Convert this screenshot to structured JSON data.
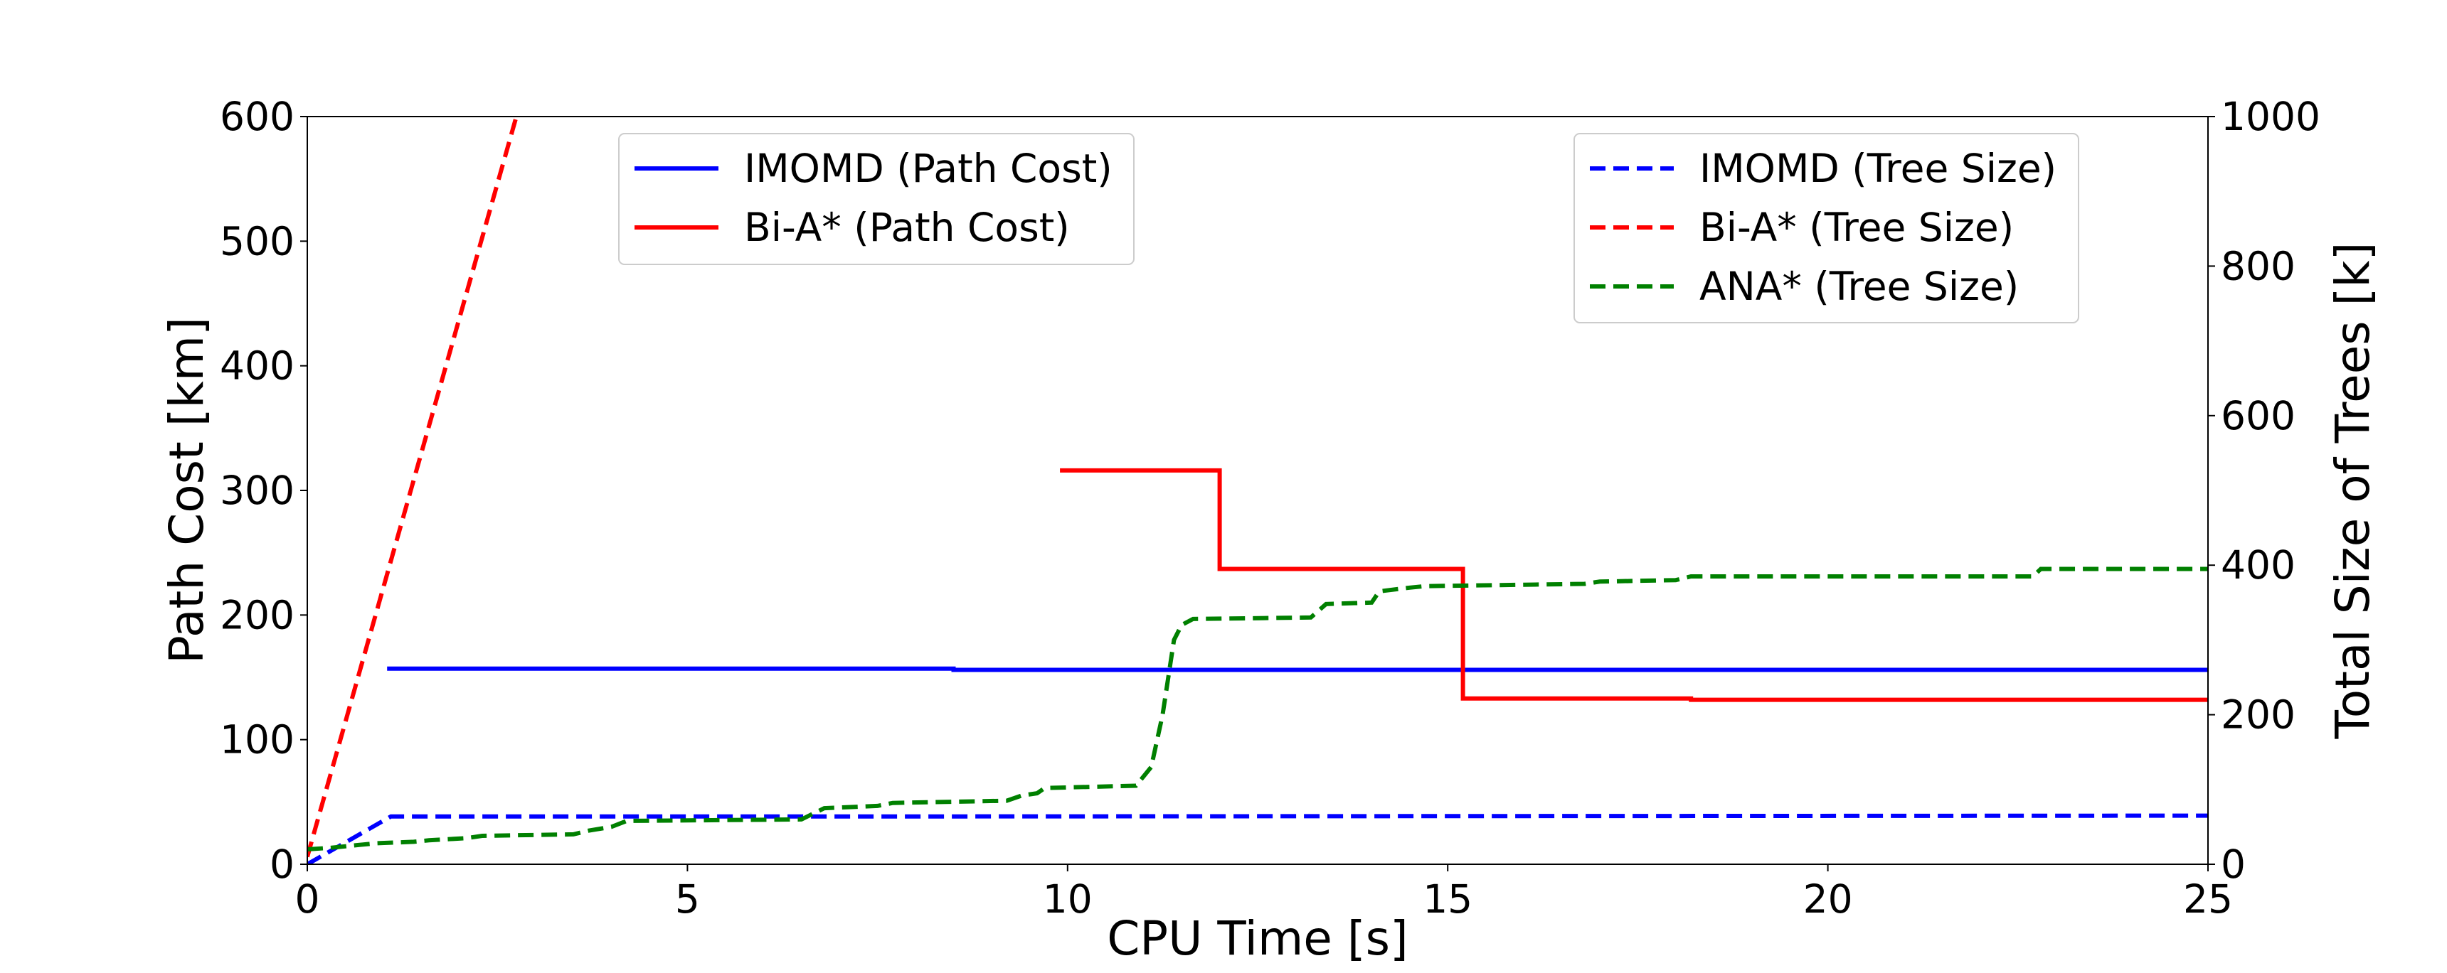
{
  "chart_data": {
    "type": "line",
    "title": "",
    "xlabel": "CPU Time [s]",
    "ylabel": "Path Cost [km]",
    "y2label": "Total Size of Trees [k]",
    "xlim": [
      0,
      25
    ],
    "ylim": [
      0,
      600
    ],
    "y2lim": [
      0,
      1000
    ],
    "xticks": [
      0,
      5,
      10,
      15,
      20,
      25
    ],
    "yticks": [
      0,
      100,
      200,
      300,
      400,
      500,
      600
    ],
    "y2ticks": [
      0,
      200,
      400,
      600,
      800,
      1000
    ],
    "grid": false,
    "legends": [
      {
        "placement": "top-left",
        "entries": [
          "IMOMD (Path Cost)",
          "Bi-A* (Path Cost)"
        ]
      },
      {
        "placement": "top-right",
        "entries": [
          "IMOMD (Tree Size)",
          "Bi-A* (Tree Size)",
          "ANA* (Tree Size)"
        ]
      }
    ],
    "series": [
      {
        "name": "IMOMD (Path Cost)",
        "axis": "left",
        "color": "#0000ff",
        "style": "solid",
        "x": [
          1.05,
          8.5,
          8.5,
          25
        ],
        "y": [
          157,
          157,
          156,
          156
        ]
      },
      {
        "name": "Bi-A* (Path Cost)",
        "axis": "left",
        "color": "#ff0000",
        "style": "solid",
        "x": [
          9.9,
          12.0,
          12.0,
          15.2,
          15.2,
          18.2,
          18.2,
          25
        ],
        "y": [
          316,
          316,
          237,
          237,
          133,
          133,
          132,
          132
        ]
      },
      {
        "name": "IMOMD (Tree Size)",
        "axis": "right",
        "color": "#0000ff",
        "style": "dashed",
        "x": [
          0,
          1.1,
          8.5,
          25
        ],
        "y": [
          0,
          64,
          64,
          65
        ]
      },
      {
        "name": "Bi-A* (Tree Size)",
        "axis": "right",
        "color": "#ff0000",
        "style": "dashed",
        "x": [
          0,
          2.75
        ],
        "y": [
          10,
          1000
        ]
      },
      {
        "name": "ANA* (Tree Size)",
        "axis": "right",
        "color": "#008000",
        "style": "dashed",
        "x": [
          0,
          0.3,
          0.9,
          1.4,
          1.6,
          2.1,
          2.3,
          3.5,
          3.7,
          4.0,
          4.2,
          6.5,
          6.8,
          7.5,
          7.7,
          9.2,
          9.4,
          9.6,
          9.7,
          10.9,
          11.1,
          11.25,
          11.4,
          11.5,
          11.65,
          13.2,
          13.4,
          14.0,
          14.1,
          14.5,
          14.7,
          16.8,
          17.0,
          18.0,
          18.2,
          22.7,
          22.8,
          25
        ],
        "y": [
          20,
          22,
          28,
          30,
          32,
          35,
          38,
          40,
          45,
          50,
          58,
          60,
          75,
          78,
          82,
          85,
          92,
          95,
          102,
          105,
          130,
          200,
          300,
          320,
          328,
          330,
          348,
          350,
          365,
          370,
          372,
          375,
          378,
          380,
          385,
          385,
          395,
          395
        ]
      }
    ]
  }
}
